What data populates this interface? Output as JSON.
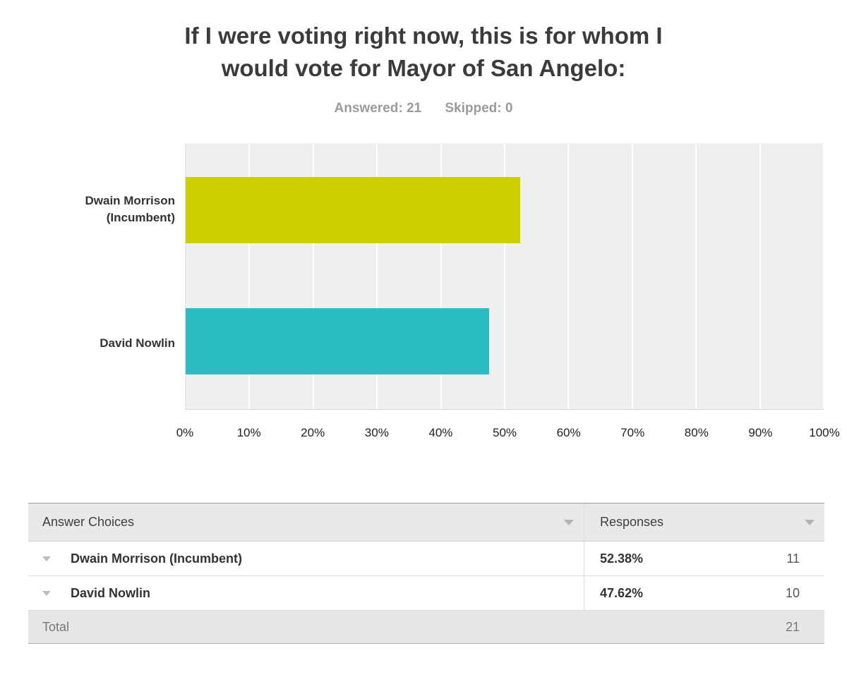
{
  "header": {
    "title": "If I were voting right now, this is for whom I would vote for Mayor of San Angelo:",
    "title_lines": [
      "If I were voting right now, this is for whom I",
      "would vote for Mayor of San Angelo:"
    ],
    "answered_label": "Answered:",
    "answered_value": "21",
    "skipped_label": "Skipped:",
    "skipped_value": "0"
  },
  "chart_data": {
    "type": "bar",
    "orientation": "horizontal",
    "title": "If I were voting right now, this is for whom I would vote for Mayor of San Angelo:",
    "categories": [
      "Dwain Morrison (Incumbent)",
      "David Nowlin"
    ],
    "values": [
      52.38,
      47.62
    ],
    "counts": [
      11,
      10
    ],
    "colors": [
      "#cdd000",
      "#2abcc0"
    ],
    "x_ticks": [
      "0%",
      "10%",
      "20%",
      "30%",
      "40%",
      "50%",
      "60%",
      "70%",
      "80%",
      "90%",
      "100%"
    ],
    "xlim": [
      0,
      100
    ],
    "plot_background": "#efefef",
    "gridlines": "white vertical lines every 10%",
    "legend": "none"
  },
  "table": {
    "headers": {
      "answer_choices": "Answer Choices",
      "responses": "Responses"
    },
    "rows": [
      {
        "choice": "Dwain Morrison (Incumbent)",
        "percent": "52.38%",
        "count": "11"
      },
      {
        "choice": "David Nowlin",
        "percent": "47.62%",
        "count": "10"
      }
    ],
    "total_label": "Total",
    "total_value": "21"
  }
}
